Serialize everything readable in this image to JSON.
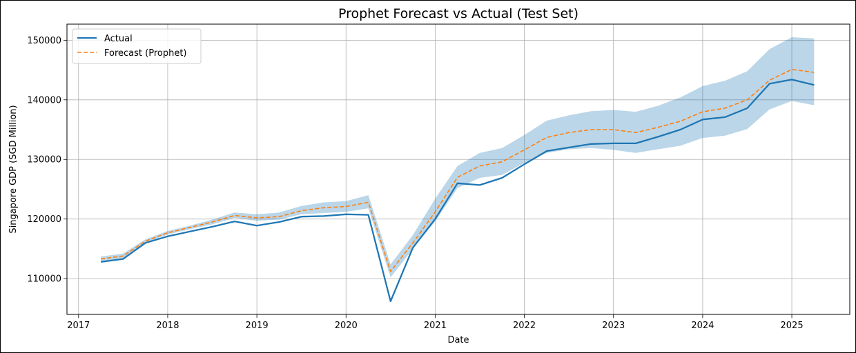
{
  "chart_data": {
    "type": "line",
    "title": "Prophet Forecast vs Actual (Test Set)",
    "xlabel": "Date",
    "ylabel": "Singapore GDP (SGD Million)",
    "x_ticks": [
      "2017",
      "2018",
      "2019",
      "2020",
      "2021",
      "2022",
      "2023",
      "2024",
      "2025"
    ],
    "y_ticks": [
      110000,
      120000,
      130000,
      140000,
      150000
    ],
    "y_tick_labels": [
      "110000",
      "120000",
      "130000",
      "140000",
      "150000"
    ],
    "xlim": [
      2016.87,
      2025.65
    ],
    "ylim": [
      104000,
      152700
    ],
    "grid": true,
    "legend_position": "top-left",
    "x": [
      2017.25,
      2017.5,
      2017.75,
      2018.0,
      2018.25,
      2018.5,
      2018.75,
      2019.0,
      2019.25,
      2019.5,
      2019.75,
      2020.0,
      2020.25,
      2020.5,
      2020.75,
      2021.0,
      2021.25,
      2021.5,
      2021.75,
      2022.0,
      2022.25,
      2022.5,
      2022.75,
      2023.0,
      2023.25,
      2023.5,
      2023.75,
      2024.0,
      2024.25,
      2024.5,
      2024.75,
      2025.0,
      2025.25
    ],
    "series": [
      {
        "name": "Actual",
        "color": "#1f77b4",
        "style": "solid",
        "values": [
          112800,
          113300,
          116000,
          117100,
          117900,
          118700,
          119600,
          118900,
          119500,
          120400,
          120500,
          120800,
          120700,
          106200,
          115200,
          120000,
          126000,
          125700,
          126900,
          129200,
          131400,
          132000,
          132600,
          132700,
          132700,
          133800,
          135000,
          136700,
          137100,
          138600,
          142700,
          143400,
          142500
        ]
      },
      {
        "name": "Forecast (Prophet)",
        "color": "#ff7f0e",
        "style": "dashed",
        "values": [
          113300,
          113800,
          116300,
          117700,
          118600,
          119500,
          120600,
          120200,
          120400,
          121400,
          121900,
          122100,
          122800,
          111200,
          116000,
          121200,
          127000,
          128900,
          129600,
          131600,
          133700,
          134500,
          135000,
          135000,
          134500,
          135400,
          136400,
          138000,
          138600,
          140000,
          143300,
          145100,
          144600
        ]
      }
    ],
    "interval": {
      "color": "#1f77b4",
      "opacity": 0.3,
      "lower": [
        112800,
        113300,
        116000,
        117400,
        118300,
        119100,
        120200,
        119700,
        119900,
        120800,
        121000,
        121200,
        121800,
        110200,
        115000,
        119600,
        125200,
        126900,
        127400,
        129400,
        131100,
        131700,
        131900,
        131600,
        131100,
        131700,
        132300,
        133600,
        134000,
        135100,
        138400,
        139800,
        139100
      ],
      "upper": [
        113700,
        114200,
        116600,
        118000,
        118900,
        119900,
        121100,
        120800,
        121100,
        122200,
        122800,
        123000,
        124000,
        112400,
        117300,
        123400,
        128900,
        131100,
        131900,
        134100,
        136500,
        137400,
        138100,
        138300,
        138000,
        139000,
        140400,
        142300,
        143200,
        144800,
        148500,
        150500,
        150300
      ]
    }
  }
}
